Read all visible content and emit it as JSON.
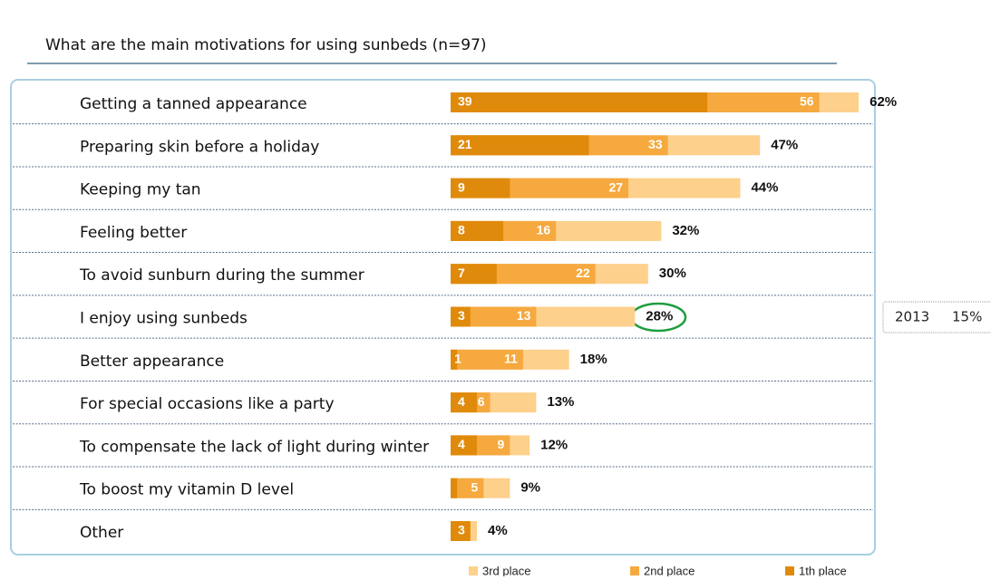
{
  "chart_data": {
    "type": "bar",
    "title": "What are the main motivations for using sunbeds (n=97)",
    "categories": [
      "Getting a tanned appearance",
      "Preparing skin before a holiday",
      "Keeping my tan",
      "Feeling better",
      "To avoid sunburn during the summer",
      "I enjoy using sunbeds",
      "Better appearance",
      "For special occasions like a party",
      "To compensate the lack of light during winter",
      "To boost my vitamin D level",
      "Other"
    ],
    "series": [
      {
        "name": "3rd place",
        "color": "#fdd08c",
        "values": [
          62,
          47,
          44,
          32,
          30,
          28,
          18,
          13,
          12,
          9,
          4
        ],
        "value_labels": [
          "62%",
          "47%",
          "44%",
          "32%",
          "30%",
          "28%",
          "18%",
          "13%",
          "12%",
          "9%",
          "4%"
        ]
      },
      {
        "name": "2nd place",
        "color": "#f5a93f",
        "values": [
          56,
          33,
          27,
          16,
          22,
          13,
          11,
          6,
          9,
          5,
          3
        ],
        "value_labels": [
          "56",
          "33",
          "27",
          "16",
          "22",
          "13",
          "11",
          "6",
          "9",
          "5",
          null
        ]
      },
      {
        "name": "1th place",
        "color": "#e08a0b",
        "values": [
          39,
          21,
          9,
          8,
          7,
          3,
          1,
          4,
          4,
          1,
          3
        ],
        "value_labels": [
          "39",
          "21",
          "9",
          "8",
          "7",
          "3",
          "1",
          "4",
          "4",
          null,
          "3"
        ]
      }
    ],
    "annotations": [
      "2013",
      "15%"
    ]
  }
}
